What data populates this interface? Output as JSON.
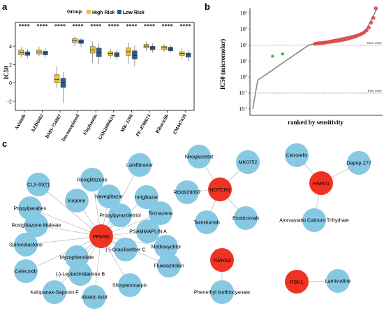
{
  "panels": {
    "a": "a",
    "b": "b",
    "c": "c"
  },
  "chart_data": [
    {
      "type": "box",
      "panel": "a",
      "ylabel": "IC50",
      "ylim": [
        -3,
        6.6
      ],
      "yticks": [
        -2,
        0,
        2,
        4
      ],
      "legend": {
        "title": "Group",
        "position": "top",
        "entries": [
          {
            "name": "High Risk",
            "color": "#e8c23a"
          },
          {
            "name": "Low Risk",
            "color": "#2e5d8c"
          }
        ]
      },
      "significance": "****",
      "categories": [
        "Axitinib",
        "AZD6482",
        "BMS-754807",
        "Doramapimod",
        "Elephantin",
        "GSK269962A",
        "MK-2206",
        "PF-4708671",
        "Ribociclib",
        "ZM447439"
      ],
      "high_risk": [
        {
          "min": 2.8,
          "q1": 3.05,
          "median": 3.3,
          "q3": 3.6,
          "max": 3.9
        },
        {
          "min": 2.9,
          "q1": 3.15,
          "median": 3.35,
          "q3": 3.6,
          "max": 3.95
        },
        {
          "min": -0.6,
          "q1": 0.0,
          "median": 0.4,
          "q3": 0.9,
          "max": 1.8
        },
        {
          "min": 4.0,
          "q1": 4.4,
          "median": 4.65,
          "q3": 4.85,
          "max": 5.1
        },
        {
          "min": 2.2,
          "q1": 3.25,
          "median": 3.6,
          "q3": 3.95,
          "max": 4.5
        },
        {
          "min": 2.7,
          "q1": 3.0,
          "median": 3.2,
          "q3": 3.4,
          "max": 3.7
        },
        {
          "min": 2.1,
          "q1": 3.0,
          "median": 3.4,
          "q3": 3.8,
          "max": 4.4
        },
        {
          "min": 3.5,
          "q1": 3.8,
          "median": 4.0,
          "q3": 4.2,
          "max": 4.5
        },
        {
          "min": 3.4,
          "q1": 3.65,
          "median": 3.85,
          "q3": 4.0,
          "max": 4.2
        },
        {
          "min": 2.6,
          "q1": 3.0,
          "median": 3.2,
          "q3": 3.4,
          "max": 3.8
        }
      ],
      "low_risk": [
        {
          "min": 2.7,
          "q1": 3.0,
          "median": 3.2,
          "q3": 3.4,
          "max": 3.7
        },
        {
          "min": 2.8,
          "q1": 3.05,
          "median": 3.25,
          "q3": 3.45,
          "max": 3.8
        },
        {
          "min": -2.2,
          "q1": -0.5,
          "median": 0.0,
          "q3": 0.5,
          "max": 1.2
        },
        {
          "min": 3.9,
          "q1": 4.3,
          "median": 4.5,
          "q3": 4.7,
          "max": 4.9
        },
        {
          "min": 2.0,
          "q1": 2.85,
          "median": 3.3,
          "q3": 3.8,
          "max": 4.3
        },
        {
          "min": 2.5,
          "q1": 2.85,
          "median": 3.05,
          "q3": 3.3,
          "max": 3.6
        },
        {
          "min": 1.8,
          "q1": 2.6,
          "median": 3.0,
          "q3": 3.5,
          "max": 4.1
        },
        {
          "min": 3.3,
          "q1": 3.6,
          "median": 3.8,
          "q3": 4.0,
          "max": 4.3
        },
        {
          "min": 3.3,
          "q1": 3.5,
          "median": 3.7,
          "q3": 3.9,
          "max": 4.1
        },
        {
          "min": 2.4,
          "q1": 2.8,
          "median": 3.05,
          "q3": 3.25,
          "max": 3.6
        }
      ]
    },
    {
      "type": "scatter",
      "panel": "b",
      "ylabel": "IC50 (micromolar)",
      "xlabel": "ranked by sensitivity",
      "yscale": "log",
      "ytick_exponents": [
        -2,
        -1,
        0,
        1,
        2,
        3,
        4
      ],
      "reference_lines": [
        {
          "label": "max conc",
          "value": 100
        },
        {
          "label": "min conc",
          "value": 0.1
        }
      ],
      "curve_color": "#888888",
      "highlight_color": "#e53935",
      "green_color": "#4caf50",
      "green_points": [
        {
          "rank": 0.16,
          "value": 20
        },
        {
          "rank": 0.24,
          "value": 28
        }
      ],
      "red_points_log10": [
        2.08,
        2.1,
        2.12,
        2.13,
        2.15,
        2.17,
        2.19,
        2.21,
        2.23,
        2.25,
        2.28,
        2.3,
        2.33,
        2.36,
        2.4,
        2.44,
        2.48,
        2.53,
        2.58,
        2.64,
        2.71,
        2.8,
        2.92,
        3.1,
        3.4,
        3.7,
        4.3
      ]
    }
  ],
  "network": {
    "node_color_hub": "#ee3322",
    "node_color_drug": "#87c8e3",
    "hubs": [
      {
        "id": "PPARG",
        "label": "PPARG",
        "pos": [
          145,
          338
        ]
      },
      {
        "id": "NOTCH3",
        "label": "NOTCH3",
        "pos": [
          315,
          271
        ]
      },
      {
        "id": "HSPD1",
        "label": "HSPD1",
        "pos": [
          460,
          262
        ]
      },
      {
        "id": "YWHAZ",
        "label": "YWHAZ",
        "pos": [
          318,
          372
        ]
      },
      {
        "id": "PGK1",
        "label": "PGK1",
        "pos": [
          425,
          403
        ]
      }
    ],
    "drugs": [
      {
        "label": "CLX-0921",
        "hub": "PPARG",
        "pos": [
          55,
          264
        ]
      },
      {
        "label": "Rosiglitazone",
        "hub": "PPARG",
        "pos": [
          132,
          257
        ]
      },
      {
        "label": "Lanifibranor",
        "hub": "PPARG",
        "pos": [
          200,
          236
        ]
      },
      {
        "label": "Propylparaben",
        "hub": "PPARG",
        "pos": [
          43,
          298
        ]
      },
      {
        "label": "Kepone",
        "hub": "PPARG",
        "pos": [
          110,
          287
        ]
      },
      {
        "label": "Naveglitazar",
        "hub": "PPARG",
        "pos": [
          156,
          281
        ]
      },
      {
        "label": "Imiglitazar",
        "hub": "PPARG",
        "pos": [
          210,
          282
        ]
      },
      {
        "label": "Propylpyrazoletriol",
        "hub": "PPARG",
        "pos": [
          172,
          308
        ]
      },
      {
        "label": "Tecnazene",
        "hub": "PPARG",
        "pos": [
          230,
          305
        ]
      },
      {
        "label": "Rosiglitazone Maleate",
        "hub": "PPARG",
        "pos": [
          52,
          322
        ]
      },
      {
        "label": "PSAMMAPLIN A",
        "hub": "PPARG",
        "pos": [
          212,
          331
        ]
      },
      {
        "label": "Spironolactone",
        "hub": "PPARG",
        "pos": [
          37,
          350
        ]
      },
      {
        "label": "Mycophenolate",
        "hub": "PPARG",
        "pos": [
          110,
          368
        ]
      },
      {
        "label": "(-)-Gracilioether C",
        "hub": "PPARG",
        "pos": [
          180,
          357
        ]
      },
      {
        "label": "Methoxychlor",
        "hub": "PPARG",
        "pos": [
          238,
          353
        ]
      },
      {
        "label": "Celecoxib",
        "hub": "PPARG",
        "pos": [
          37,
          388
        ]
      },
      {
        "label": "(-)-Leptoclinidamine B",
        "hub": "PPARG",
        "pos": [
          115,
          392
        ]
      },
      {
        "label": "Fluxoastrobin",
        "hub": "PPARG",
        "pos": [
          242,
          380
        ]
      },
      {
        "label": "Kalopanax-Saponin F",
        "hub": "PPARG",
        "pos": [
          78,
          418
        ]
      },
      {
        "label": "Shinpterocarpin",
        "hub": "PPARG",
        "pos": [
          186,
          408
        ]
      },
      {
        "label": "Abietic Acid",
        "hub": "PPARG",
        "pos": [
          135,
          425
        ]
      },
      {
        "label": "Nirogacestat",
        "hub": "NOTCH3",
        "pos": [
          285,
          224
        ]
      },
      {
        "label": "MK0752",
        "hub": "NOTCH3",
        "pos": [
          355,
          232
        ]
      },
      {
        "label": "RO4929097",
        "hub": "NOTCH3",
        "pos": [
          268,
          275
        ]
      },
      {
        "label": "Tarextumab",
        "hub": "NOTCH3",
        "pos": [
          296,
          318
        ]
      },
      {
        "label": "Enoticumab",
        "hub": "NOTCH3",
        "pos": [
          352,
          312
        ]
      },
      {
        "label": "Cetrorelix",
        "hub": "HSPD1",
        "pos": [
          425,
          222
        ]
      },
      {
        "label": "Dapep-277",
        "hub": "HSPD1",
        "pos": [
          514,
          233
        ]
      },
      {
        "label": "Atorvastatin Calcium Trihydrate",
        "hub": "HSPD1",
        "pos": [
          450,
          315
        ]
      },
      {
        "label": "Phenethyl Isothiocyanate",
        "hub": "YWHAZ",
        "pos": [
          318,
          418
        ]
      },
      {
        "label": "Lamivudine",
        "hub": "PGK1",
        "pos": [
          484,
          402
        ]
      }
    ]
  }
}
